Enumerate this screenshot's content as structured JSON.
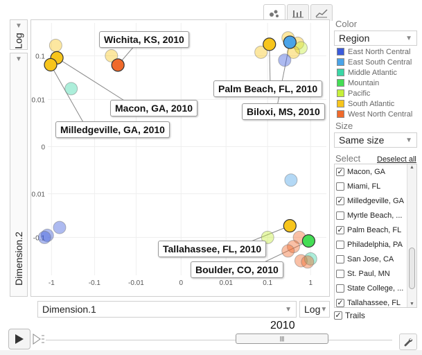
{
  "tabs": [
    {
      "name": "bubbles",
      "icon": "bubble-chart-icon"
    },
    {
      "name": "bars",
      "icon": "bar-chart-icon"
    },
    {
      "name": "lines",
      "icon": "line-chart-icon"
    }
  ],
  "y_axis": {
    "scale_label": "Log",
    "title": "Dimension.2"
  },
  "x_axis": {
    "title": "Dimension.1",
    "scale_label": "Log"
  },
  "color": {
    "label": "Color",
    "selected": "Region",
    "legend": [
      {
        "name": "East North Central",
        "color": "#3b5bdb"
      },
      {
        "name": "East South Central",
        "color": "#4aa3e8"
      },
      {
        "name": "Middle Atlantic",
        "color": "#3ad6a6"
      },
      {
        "name": "Mountain",
        "color": "#44dd55"
      },
      {
        "name": "Pacific",
        "color": "#c6ef3a"
      },
      {
        "name": "South Atlantic",
        "color": "#f7c51c"
      },
      {
        "name": "West North Central",
        "color": "#f06a2b"
      }
    ]
  },
  "size": {
    "label": "Size",
    "selected": "Same size"
  },
  "select": {
    "label": "Select",
    "deselect_label": "Deselect all",
    "items": [
      {
        "label": "Macon, GA",
        "checked": true
      },
      {
        "label": "Miami, FL",
        "checked": false
      },
      {
        "label": "Milledgeville, GA",
        "checked": true
      },
      {
        "label": "Myrtle Beach, ...",
        "checked": false
      },
      {
        "label": "Palm Beach, FL",
        "checked": true
      },
      {
        "label": "Philadelphia, PA",
        "checked": false
      },
      {
        "label": "San Jose, CA",
        "checked": false
      },
      {
        "label": "St. Paul, MN",
        "checked": false
      },
      {
        "label": "State College, ...",
        "checked": false
      },
      {
        "label": "Tallahassee, FL",
        "checked": true
      },
      {
        "label": "Wichita, KS",
        "checked": true
      }
    ]
  },
  "trails": {
    "label": "Trails",
    "checked": true
  },
  "timeline": {
    "year": "2010"
  },
  "chart_data": {
    "type": "scatter",
    "xlabel": "Dimension.1",
    "ylabel": "Dimension.2",
    "x_scale": "log",
    "y_scale": "log",
    "x_ticks": [
      "-1",
      "-0.1",
      "-0.01",
      "0",
      "0.01",
      "0.1",
      "1"
    ],
    "y_ticks": [
      "0.1",
      "0.01",
      "0",
      "-0.01",
      "-0.1"
    ],
    "year": "2010",
    "points": [
      {
        "x": -0.8,
        "y": 0.17,
        "region": "South Atlantic",
        "highlight": false
      },
      {
        "x": -0.04,
        "y": 0.1,
        "region": "South Atlantic",
        "highlight": false
      },
      {
        "x": -0.028,
        "y": 0.062,
        "region": "West North Central",
        "highlight": true,
        "label": "Wichita, KS, 2010"
      },
      {
        "x": -0.75,
        "y": 0.09,
        "region": "South Atlantic",
        "highlight": true,
        "label": "Macon, GA, 2010"
      },
      {
        "x": -1.05,
        "y": 0.063,
        "region": "South Atlantic",
        "highlight": true,
        "label": "Milledgeville, GA, 2010"
      },
      {
        "x": -0.35,
        "y": 0.018,
        "region": "Middle Atlantic",
        "highlight": false
      },
      {
        "x": 0.07,
        "y": 0.12,
        "region": "South Atlantic",
        "highlight": false
      },
      {
        "x": 0.11,
        "y": 0.18,
        "region": "South Atlantic",
        "highlight": true,
        "label": "Palm Beach, FL, 2010"
      },
      {
        "x": 0.3,
        "y": 0.25,
        "region": "South Atlantic",
        "highlight": false
      },
      {
        "x": 0.33,
        "y": 0.2,
        "region": "East South Central",
        "highlight": true,
        "label": "Biloxi, MS, 2010"
      },
      {
        "x": 0.5,
        "y": 0.19,
        "region": "South Atlantic",
        "highlight": false
      },
      {
        "x": 0.6,
        "y": 0.15,
        "region": "Pacific",
        "highlight": false
      },
      {
        "x": 0.4,
        "y": 0.12,
        "region": "South Atlantic",
        "highlight": false
      },
      {
        "x": 0.25,
        "y": 0.08,
        "region": "East North Central",
        "highlight": false
      },
      {
        "x": 0.35,
        "y": -0.0045,
        "region": "East South Central",
        "highlight": false
      },
      {
        "x": 0.33,
        "y": -0.055,
        "region": "South Atlantic",
        "highlight": true,
        "label": "Tallahassee, FL, 2010"
      },
      {
        "x": 0.1,
        "y": -0.1,
        "region": "Pacific",
        "highlight": false
      },
      {
        "x": 0.55,
        "y": -0.1,
        "region": "West North Central",
        "highlight": false
      },
      {
        "x": 0.4,
        "y": -0.16,
        "region": "West North Central",
        "highlight": false
      },
      {
        "x": 0.3,
        "y": -0.2,
        "region": "West North Central",
        "highlight": false
      },
      {
        "x": 0.9,
        "y": -0.12,
        "region": "Mountain",
        "highlight": true,
        "label": "Boulder, CO, 2010"
      },
      {
        "x": 0.6,
        "y": -0.33,
        "region": "West North Central",
        "highlight": false
      },
      {
        "x": 1.0,
        "y": -0.3,
        "region": "Middle Atlantic",
        "highlight": false
      },
      {
        "x": 0.85,
        "y": -0.35,
        "region": "West North Central",
        "highlight": false
      },
      {
        "x": -0.65,
        "y": -0.06,
        "region": "East North Central",
        "highlight": false
      },
      {
        "x": -1.25,
        "y": -0.09,
        "region": "East North Central",
        "highlight": false
      },
      {
        "x": -1.45,
        "y": -0.1,
        "region": "East North Central",
        "highlight": false
      }
    ]
  }
}
